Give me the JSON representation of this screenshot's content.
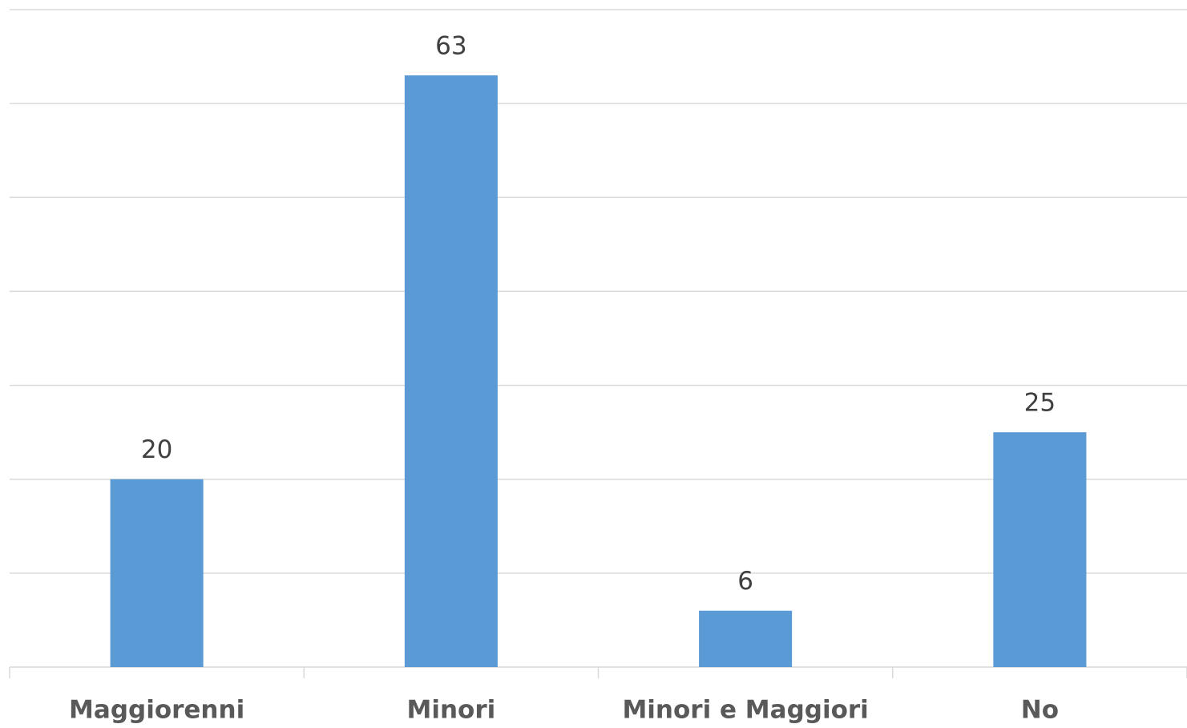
{
  "chart_data": {
    "type": "bar",
    "categories": [
      "Maggiorenni",
      "Minori",
      "Minori e Maggiori",
      "No"
    ],
    "values": [
      20,
      63,
      6,
      25
    ],
    "color": "#5b9bd5",
    "ylim": [
      0,
      70
    ],
    "yticks": [
      0,
      10,
      20,
      30,
      40,
      50,
      60,
      70
    ],
    "grid": true
  }
}
